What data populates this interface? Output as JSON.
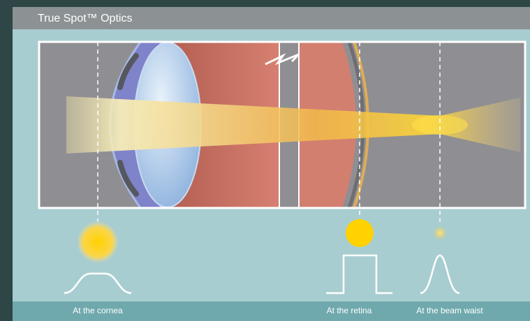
{
  "header": {
    "title": "True Spot™ Optics"
  },
  "labels": [
    "At the cornea",
    "At the retina",
    "At the beam waist"
  ]
}
